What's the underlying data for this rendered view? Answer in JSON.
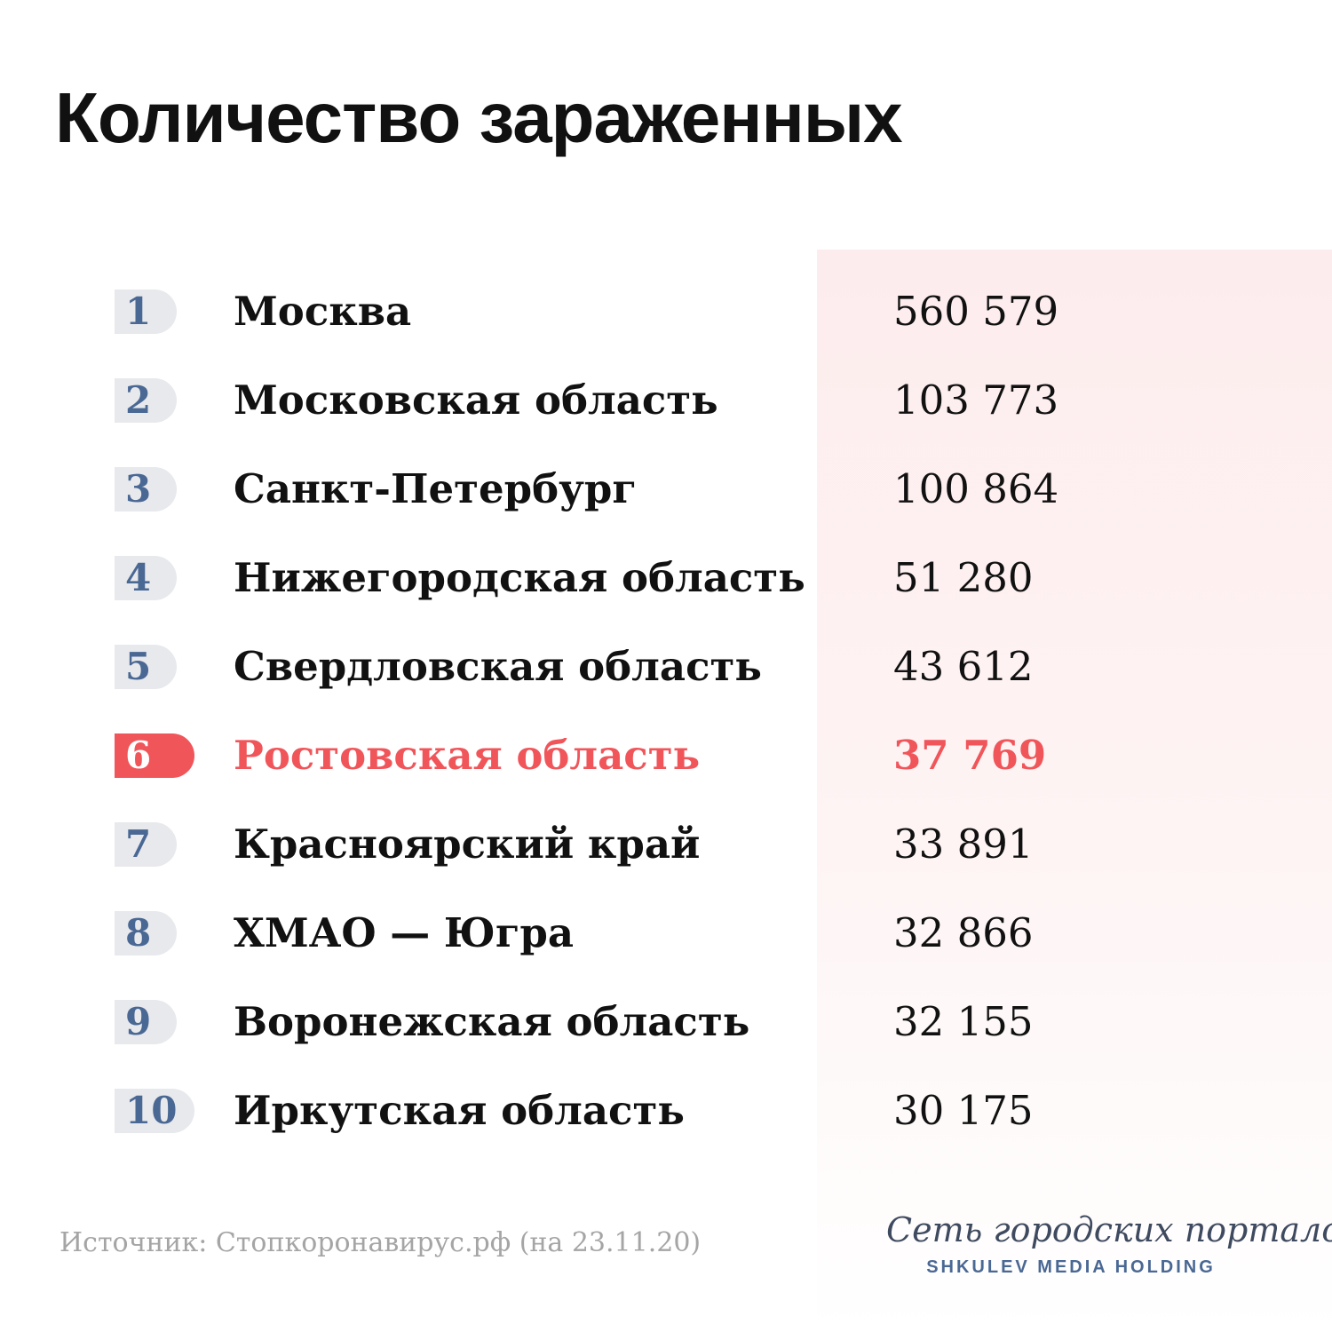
{
  "title": "Количество зараженных",
  "colors": {
    "accent": "#f0555a",
    "rank_badge_bg": "#e8e9ec",
    "rank_text": "#4a6894",
    "panel_tint": "#fdeced",
    "source_text": "#a5a5a5"
  },
  "rows": [
    {
      "rank": "1",
      "region": "Москва",
      "value": "560 579",
      "highlighted": false
    },
    {
      "rank": "2",
      "region": "Московская область",
      "value": "103 773",
      "highlighted": false
    },
    {
      "rank": "3",
      "region": "Санкт-Петербург",
      "value": "100 864",
      "highlighted": false
    },
    {
      "rank": "4",
      "region": "Нижегородская область",
      "value": "51 280",
      "highlighted": false
    },
    {
      "rank": "5",
      "region": "Свердловская область",
      "value": "43 612",
      "highlighted": false
    },
    {
      "rank": "6",
      "region": "Ростовская область",
      "value": "37 769",
      "highlighted": true
    },
    {
      "rank": "7",
      "region": "Красноярский край",
      "value": "33 891",
      "highlighted": false
    },
    {
      "rank": "8",
      "region": "ХМАО — Югра",
      "value": "32 866",
      "highlighted": false
    },
    {
      "rank": "9",
      "region": "Воронежская область",
      "value": "32 155",
      "highlighted": false
    },
    {
      "rank": "10",
      "region": "Иркутская область",
      "value": "30 175",
      "highlighted": false
    }
  ],
  "source": "Источник: Стопкоронавирус.рф (на 23.11.20)",
  "brand": {
    "script_name": "Сеть городских порталов",
    "holding_name": "SHKULEV MEDIA HOLDING"
  }
}
